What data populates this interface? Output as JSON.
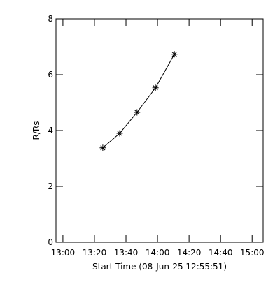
{
  "chart_data": {
    "type": "scatter",
    "x_label": "Start Time (08-Jun-25 12:55:51)",
    "y_label": "R/Rs",
    "x": [
      805.3,
      816,
      827,
      838.7,
      850.7
    ],
    "series": [
      {
        "values": [
          3.38,
          3.9,
          4.65,
          5.53,
          6.73
        ],
        "color": "#000000"
      }
    ],
    "xlim": [
      775.6,
      907
    ],
    "xticks": [
      {
        "value": 780,
        "label": "13:00"
      },
      {
        "value": 800,
        "label": "13:20"
      },
      {
        "value": 820,
        "label": "13:40"
      },
      {
        "value": 840,
        "label": "14:00"
      },
      {
        "value": 860,
        "label": "14:20"
      },
      {
        "value": 880,
        "label": "14:40"
      },
      {
        "value": 900,
        "label": "15:00"
      }
    ],
    "ylim": [
      0,
      8
    ],
    "yticks": [
      0,
      2,
      4,
      6,
      8
    ]
  }
}
